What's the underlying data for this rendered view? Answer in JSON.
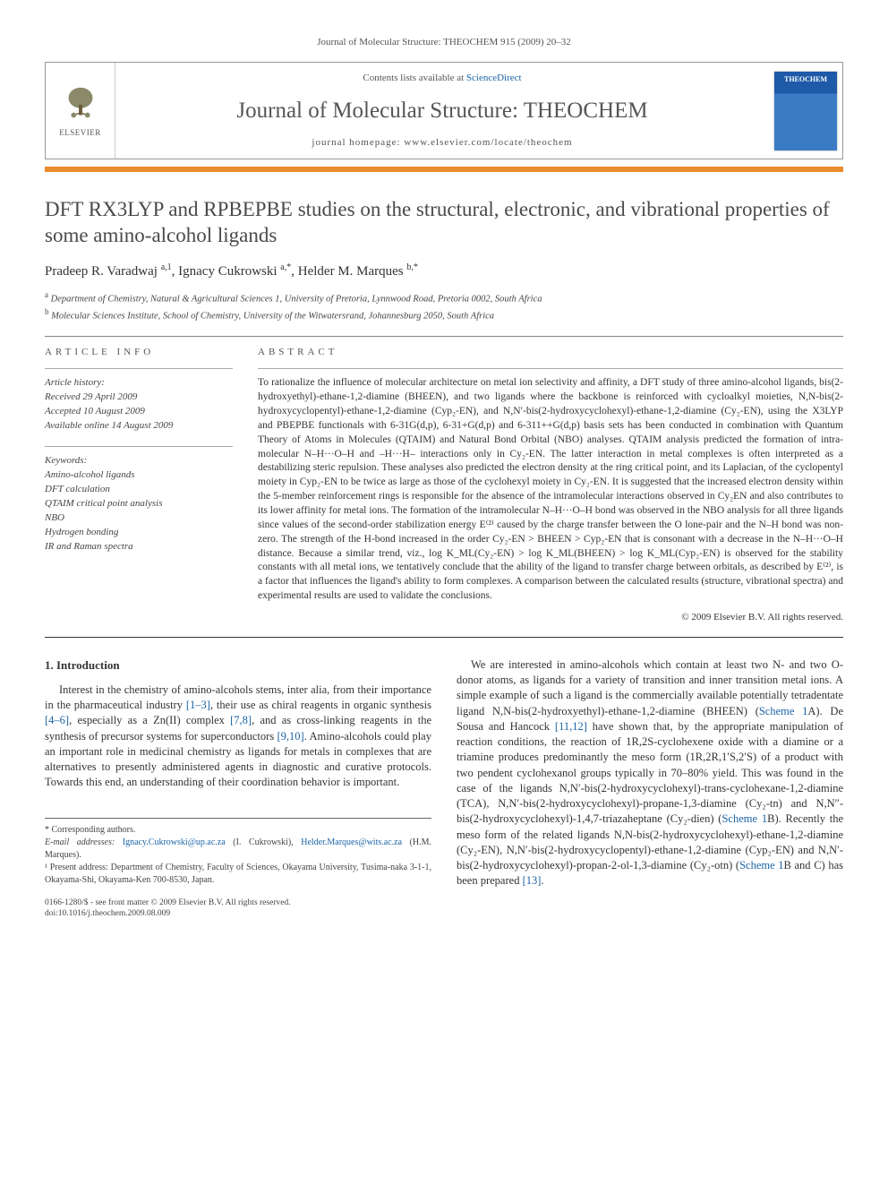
{
  "journal_ref": "Journal of Molecular Structure: THEOCHEM 915 (2009) 20–32",
  "header": {
    "contents_prefix": "Contents lists available at ",
    "contents_link": "ScienceDirect",
    "journal_name": "Journal of Molecular Structure: THEOCHEM",
    "homepage_prefix": "journal homepage: ",
    "homepage_url": "www.elsevier.com/locate/theochem",
    "publisher": "ELSEVIER",
    "cover_label": "THEOCHEM"
  },
  "title": "DFT RX3LYP and RPBEPBE studies on the structural, electronic, and vibrational properties of some amino-alcohol ligands",
  "authors_html": "Pradeep R. Varadwaj <sup>a,1</sup>, Ignacy Cukrowski <sup>a,*</sup>, Helder M. Marques <sup>b,*</sup>",
  "affiliations": [
    "<sup>a</sup> Department of Chemistry, Natural & Agricultural Sciences 1, University of Pretoria, Lynnwood Road, Pretoria 0002, South Africa",
    "<sup>b</sup> Molecular Sciences Institute, School of Chemistry, University of the Witwatersrand, Johannesburg 2050, South Africa"
  ],
  "article_info": {
    "head": "ARTICLE INFO",
    "history_label": "Article history:",
    "received": "Received 29 April 2009",
    "accepted": "Accepted 10 August 2009",
    "online": "Available online 14 August 2009",
    "keywords_label": "Keywords:",
    "keywords": [
      "Amino-alcohol ligands",
      "DFT calculation",
      "QTAIM critical point analysis",
      "NBO",
      "Hydrogen bonding",
      "IR and Raman spectra"
    ]
  },
  "abstract": {
    "head": "ABSTRACT",
    "text": "To rationalize the influence of molecular architecture on metal ion selectivity and affinity, a DFT study of three amino-alcohol ligands, bis(2-hydroxyethyl)-ethane-1,2-diamine (BHEEN), and two ligands where the backbone is reinforced with cycloalkyl moieties, N,N-bis(2-hydroxycyclopentyl)-ethane-1,2-diamine (Cyp₂-EN), and N,N′-bis(2-hydroxycyclohexyl)-ethane-1,2-diamine (Cy₂-EN), using the X3LYP and PBEPBE functionals with 6-31G(d,p), 6-31+G(d,p) and 6-311++G(d,p) basis sets has been conducted in combination with Quantum Theory of Atoms in Molecules (QTAIM) and Natural Bond Orbital (NBO) analyses. QTAIM analysis predicted the formation of intra-molecular N–H···O–H and –H···H– interactions only in Cy₂-EN. The latter interaction in metal complexes is often interpreted as a destabilizing steric repulsion. These analyses also predicted the electron density at the ring critical point, and its Laplacian, of the cyclopentyl moiety in Cyp₂-EN to be twice as large as those of the cyclohexyl moiety in Cy₂-EN. It is suggested that the increased electron density within the 5-member reinforcement rings is responsible for the absence of the intramolecular interactions observed in Cy₂EN and also contributes to its lower affinity for metal ions. The formation of the intramolecular N–H···O–H bond was observed in the NBO analysis for all three ligands since values of the second-order stabilization energy E⁽²⁾ caused by the charge transfer between the O lone-pair and the N–H bond was non-zero. The strength of the H-bond increased in the order Cy₂-EN > BHEEN > Cyp₂-EN that is consonant with a decrease in the N–H···O–H distance. Because a similar trend, viz., log K_ML(Cy₂-EN) > log K_ML(BHEEN) > log K_ML(Cyp₂-EN) is observed for the stability constants with all metal ions, we tentatively conclude that the ability of the ligand to transfer charge between orbitals, as described by E⁽²⁾, is a factor that influences the ligand's ability to form complexes. A comparison between the calculated results (structure, vibrational spectra) and experimental results are used to validate the conclusions.",
    "copyright": "© 2009 Elsevier B.V. All rights reserved."
  },
  "body": {
    "section_num": "1.",
    "section_title": "Introduction",
    "col1": "Interest in the chemistry of amino-alcohols stems, inter alia, from their importance in the pharmaceutical industry <span class='ref'>[1–3]</span>, their use as chiral reagents in organic synthesis <span class='ref'>[4–6]</span>, especially as a Zn(II) complex <span class='ref'>[7,8]</span>, and as cross-linking reagents in the synthesis of precursor systems for superconductors <span class='ref'>[9,10]</span>. Amino-alcohols could play an important role in medicinal chemistry as ligands for metals in complexes that are alternatives to presently administered agents in diagnostic and curative protocols. Towards this end, an understanding of their coordination behavior is important.",
    "col2": "We are interested in amino-alcohols which contain at least two N- and two O-donor atoms, as ligands for a variety of transition and inner transition metal ions. A simple example of such a ligand is the commercially available potentially tetradentate ligand N,N-bis(2-hydroxyethyl)-ethane-1,2-diamine (BHEEN) (<span class='ref'>Scheme 1</span>A). De Sousa and Hancock <span class='ref'>[11,12]</span> have shown that, by the appropriate manipulation of reaction conditions, the reaction of 1R,2S-cyclohexene oxide with a diamine or a triamine produces predominantly the meso form (1R,2R,1′S,2′S) of a product with two pendent cyclohexanol groups typically in 70–80% yield. This was found in the case of the ligands N,N′-bis(2-hydroxycyclohexyl)-trans-cyclohexane-1,2-diamine (TCA), N,N′-bis(2-hydroxycyclohexyl)-propane-1,3-diamine (Cy₂-tn) and N,N″-bis(2-hydroxycyclohexyl)-1,4,7-triazaheptane (Cy₂-dien) (<span class='ref'>Scheme 1</span>B). Recently the meso form of the related ligands N,N-bis(2-hydroxycyclohexyl)-ethane-1,2-diamine (Cy₂-EN), N,N′-bis(2-hydroxycyclopentyl)-ethane-1,2-diamine (Cyp₂-EN) and N,N′-bis(2-hydroxycyclohexyl)-propan-2-ol-1,3-diamine (Cy₂-otn) (<span class='ref'>Scheme 1</span>B and C) has been prepared <span class='ref'>[13]</span>."
  },
  "footer": {
    "corr": "* Corresponding authors.",
    "email_label": "E-mail addresses:",
    "email1": "Ignacy.Cukrowski@up.ac.za",
    "email1_who": "(I. Cukrowski),",
    "email2": "Helder.Marques@wits.ac.za",
    "email2_who": "(H.M. Marques).",
    "note1": "¹ Present address: Department of Chemistry, Faculty of Sciences, Okayama University, Tusima-naka 3-1-1, Okayama-Shi, Okayama-Ken 700-8530, Japan.",
    "doi_line1": "0166-1280/$ - see front matter © 2009 Elsevier B.V. All rights reserved.",
    "doi_line2": "doi:10.1016/j.theochem.2009.08.009"
  },
  "colors": {
    "link": "#1b63a6",
    "orange": "#e98b2f",
    "cover_top": "#1e5aa8",
    "cover_bottom": "#3b7bc4"
  }
}
